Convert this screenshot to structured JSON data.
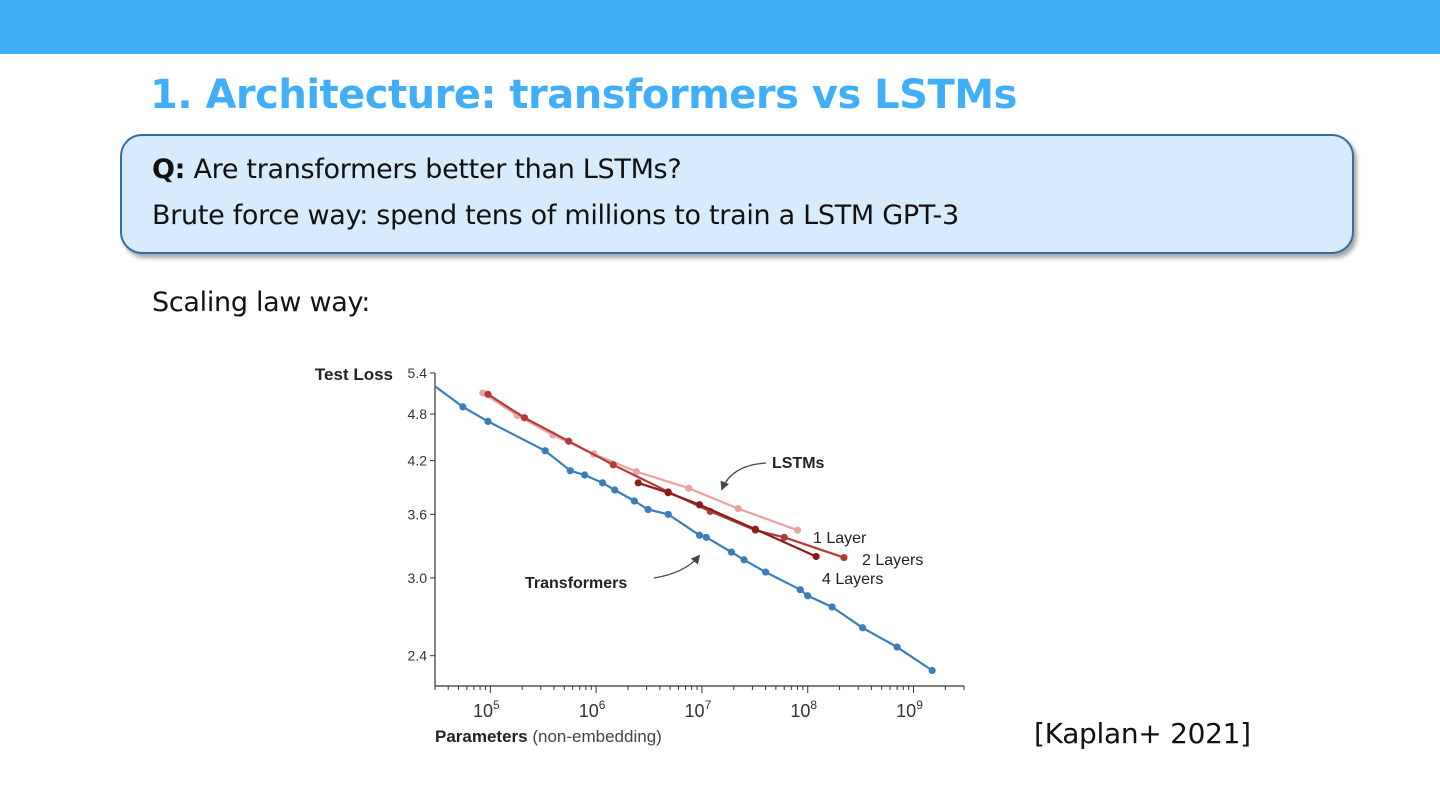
{
  "slide": {
    "title": "1. Architecture: transformers vs LSTMs",
    "question_label": "Q:",
    "question_text": " Are transformers better than LSTMs?",
    "brute_force": "Brute force way: spend tens of millions to train a LSTM GPT-3",
    "scaling_label": "Scaling law way:",
    "citation": "[Kaplan+ 2021]"
  },
  "colors": {
    "header_bar": "#40aef9",
    "title": "#40aef9",
    "box_fill": "#d6ebfb",
    "box_border": "#2f6fa5",
    "transformers": "#3a7db8",
    "lstm_1_layer": "#e9a3a3",
    "lstm_2_layers": "#b23a3a",
    "lstm_4_layers": "#8c1c1c"
  },
  "chart_data": {
    "type": "line",
    "ylabel": "Test Loss",
    "xlabel": "Parameters",
    "xlabel_suffix": " (non-embedding)",
    "x_scale": "log",
    "y_scale": "log",
    "xlim": [
      30000,
      3000000000
    ],
    "ylim": [
      2.2,
      5.4
    ],
    "yticks": [
      5.4,
      4.8,
      4.2,
      3.6,
      3.0,
      2.4
    ],
    "ytick_labels": [
      "5.4",
      "4.8",
      "4.2",
      "3.6",
      "3.0",
      "2.4"
    ],
    "xticks": [
      100000,
      1000000,
      10000000,
      100000000,
      1000000000
    ],
    "xtick_labels": [
      {
        "base": "10",
        "exp": "5"
      },
      {
        "base": "10",
        "exp": "6"
      },
      {
        "base": "10",
        "exp": "7"
      },
      {
        "base": "10",
        "exp": "8"
      },
      {
        "base": "10",
        "exp": "9"
      }
    ],
    "series": [
      {
        "key": "transformers",
        "x": [
          30000,
          55000,
          95000,
          330000,
          570000,
          780000,
          1150000,
          1500000,
          2300000,
          3100000,
          4800000,
          9500000,
          11000000,
          19000000,
          25000000,
          40000000,
          85000000,
          100000000,
          170000000,
          330000000,
          700000000,
          1500000000
        ],
        "y": [
          5.2,
          4.9,
          4.7,
          4.32,
          4.08,
          4.03,
          3.94,
          3.86,
          3.74,
          3.65,
          3.6,
          3.39,
          3.37,
          3.23,
          3.16,
          3.05,
          2.9,
          2.85,
          2.76,
          2.6,
          2.46,
          2.3
        ],
        "marker_start": 1
      },
      {
        "key": "lstm_1_layer",
        "x": [
          85000,
          180000,
          390000,
          950000,
          2400000,
          7500000,
          22000000,
          80000000
        ],
        "y": [
          5.1,
          4.78,
          4.52,
          4.28,
          4.07,
          3.88,
          3.66,
          3.44
        ],
        "marker_start": 0
      },
      {
        "key": "lstm_2_layers",
        "x": [
          95000,
          210000,
          550000,
          1450000,
          4800000,
          12000000,
          32000000,
          60000000,
          220000000
        ],
        "y": [
          5.08,
          4.75,
          4.44,
          4.15,
          3.84,
          3.63,
          3.44,
          3.37,
          3.18
        ],
        "marker_start": 0
      },
      {
        "key": "lstm_4_layers",
        "x": [
          2500000,
          4800000,
          9500000,
          32000000,
          120000000
        ],
        "y": [
          3.94,
          3.83,
          3.7,
          3.45,
          3.19
        ],
        "marker_start": 0
      }
    ],
    "annotations": {
      "lstms": "LSTMs",
      "transformers": "Transformers",
      "one_layer": "1 Layer",
      "two_layers": "2 Layers",
      "four_layers": "4 Layers"
    }
  }
}
